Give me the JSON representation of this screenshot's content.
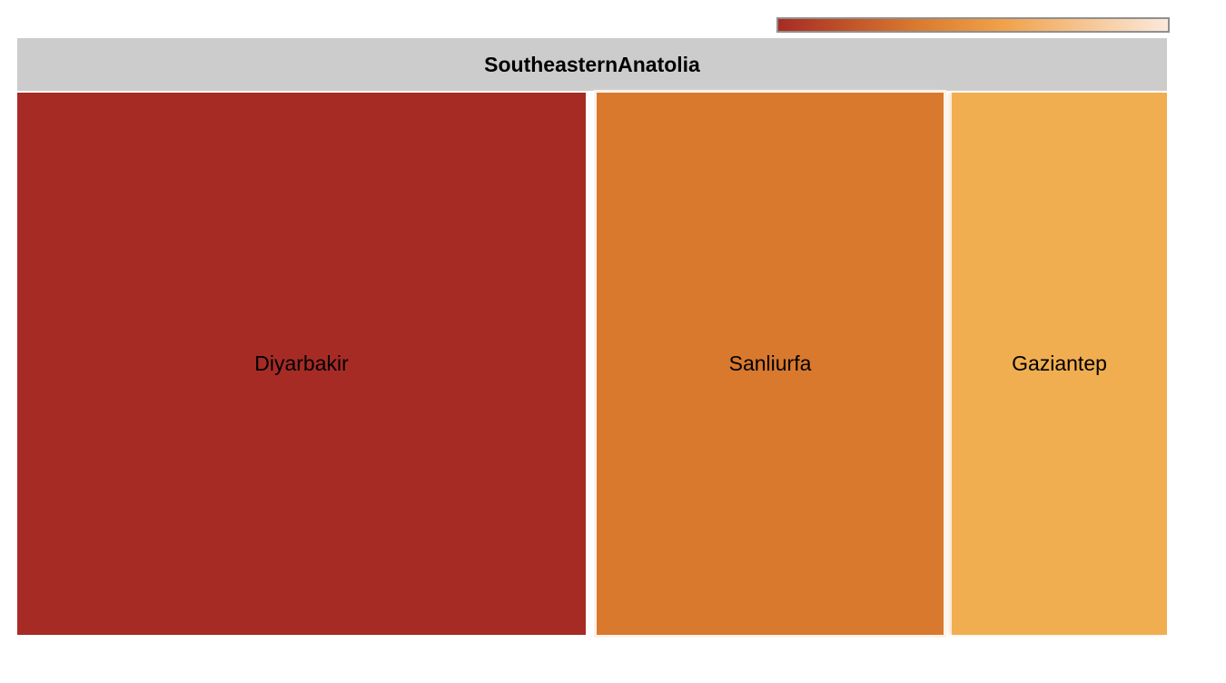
{
  "chart_data": {
    "type": "treemap",
    "parent": "SoutheasternAnatolia",
    "items": [
      {
        "name": "Diyarbakir",
        "color": "#a72b25",
        "relative_size": 628
      },
      {
        "name": "Sanliurfa",
        "color": "#d9792e",
        "relative_size": 382
      },
      {
        "name": "Gaziantep",
        "color": "#f1ae51",
        "relative_size": 237
      }
    ],
    "color_scale": {
      "stops": [
        "#a72b25",
        "#d9792e",
        "#f1a24a",
        "#fbe9dd"
      ]
    },
    "header_color": "#cccccc"
  }
}
